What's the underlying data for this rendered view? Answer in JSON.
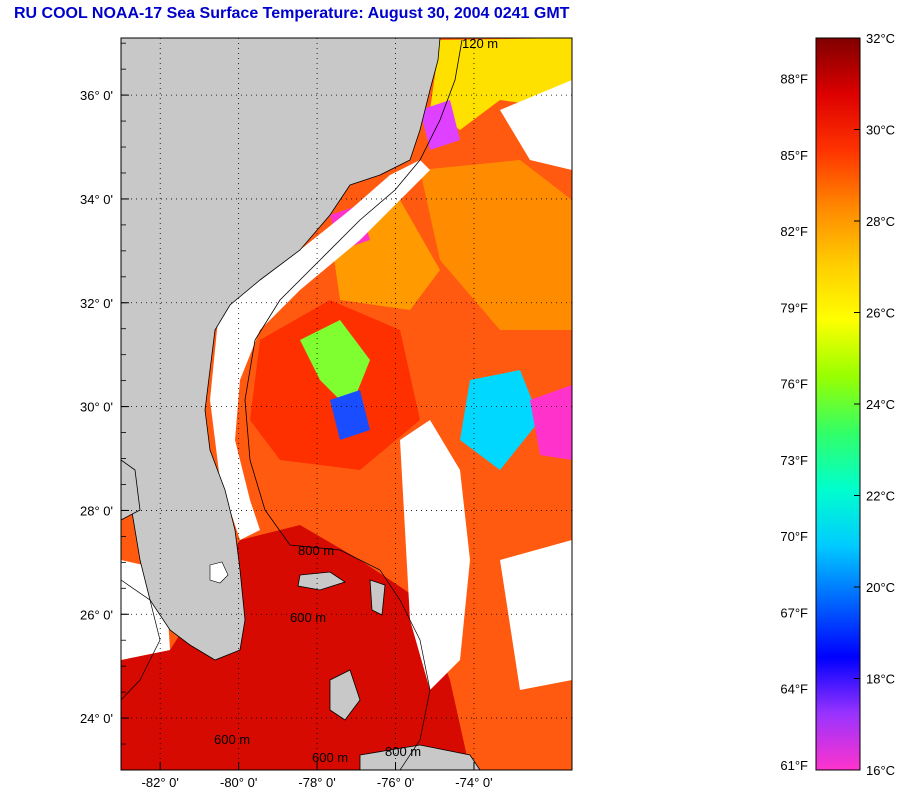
{
  "title": "RU COOL  NOAA-17  Sea Surface Temperature:  August 30, 2004 0241 GMT",
  "map": {
    "lon_range": [
      -83,
      -71.5
    ],
    "lat_range": [
      23,
      37.1
    ],
    "lat_ticks": [
      {
        "value": 36,
        "label": "36° 0'"
      },
      {
        "value": 34,
        "label": "34° 0'"
      },
      {
        "value": 32,
        "label": "32° 0'"
      },
      {
        "value": 30,
        "label": "30° 0'"
      },
      {
        "value": 28,
        "label": "28° 0'"
      },
      {
        "value": 26,
        "label": "26° 0'"
      },
      {
        "value": 24,
        "label": "24° 0'"
      }
    ],
    "lon_ticks": [
      {
        "value": -82,
        "label": "-82° 0'"
      },
      {
        "value": -80,
        "label": "-80° 0'"
      },
      {
        "value": -78,
        "label": "-78° 0'"
      },
      {
        "value": -76,
        "label": "-76° 0'"
      },
      {
        "value": -74,
        "label": "-74° 0'"
      }
    ],
    "contour_labels": [
      "120 m",
      "800 m",
      "600 m",
      "600 m",
      "600 m",
      "800 m"
    ],
    "colors": {
      "land": "#c8c8c8",
      "cloud": "#ffffff",
      "frame": "#000000",
      "grid": "#000000"
    }
  },
  "colorbar": {
    "fahrenheit_labels": [
      {
        "value": 88,
        "label": "88°F"
      },
      {
        "value": 85,
        "label": "85°F"
      },
      {
        "value": 82,
        "label": "82°F"
      },
      {
        "value": 79,
        "label": "79°F"
      },
      {
        "value": 76,
        "label": "76°F"
      },
      {
        "value": 73,
        "label": "73°F"
      },
      {
        "value": 70,
        "label": "70°F"
      },
      {
        "value": 67,
        "label": "67°F"
      },
      {
        "value": 64,
        "label": "64°F"
      },
      {
        "value": 61,
        "label": "61°F"
      }
    ],
    "celsius_labels": [
      {
        "value": 32,
        "label": "32°C"
      },
      {
        "value": 30,
        "label": "30°C"
      },
      {
        "value": 28,
        "label": "28°C"
      },
      {
        "value": 26,
        "label": "26°C"
      },
      {
        "value": 24,
        "label": "24°C"
      },
      {
        "value": 22,
        "label": "22°C"
      },
      {
        "value": 20,
        "label": "20°C"
      },
      {
        "value": 18,
        "label": "18°C"
      },
      {
        "value": 16,
        "label": "16°C"
      }
    ],
    "range_c": [
      16,
      32
    ],
    "gradient": [
      "#ff33cc",
      "#9933ff",
      "#0000ff",
      "#0066ff",
      "#00ccff",
      "#00ffcc",
      "#33ff66",
      "#99ff00",
      "#ffff00",
      "#ffcc00",
      "#ff8800",
      "#ff3300",
      "#dd0000",
      "#800000"
    ]
  }
}
